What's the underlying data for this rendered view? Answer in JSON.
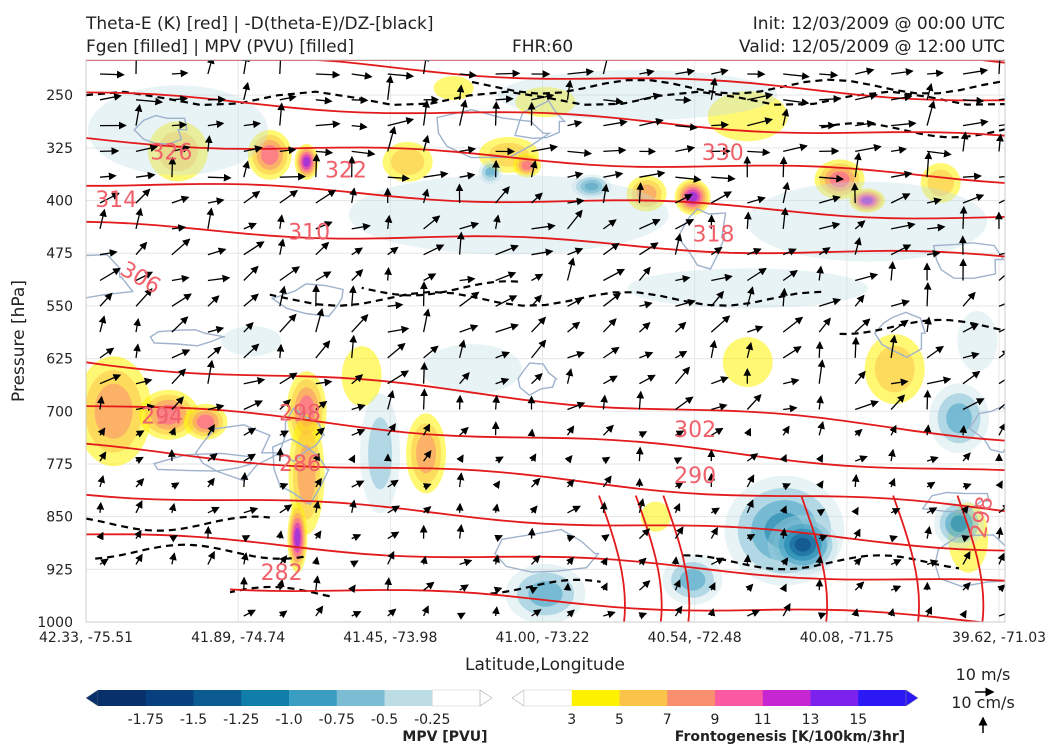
{
  "header": {
    "title_line1": "Theta-E (K) [red] | -D(theta-E)/DZ-[black]",
    "title_line2": "Fgen [filled] | MPV (PVU) [filled]",
    "fhr": "FHR:60",
    "init": "Init: 12/03/2009 @ 00:00 UTC",
    "valid": "Valid: 12/05/2009 @ 12:00 UTC"
  },
  "chart_data": {
    "type": "cross-section",
    "xlabel": "Latitude,Longitude",
    "ylabel": "Pressure [hPa]",
    "x_ticks": [
      "42.33, -75.51",
      "41.89, -74.74",
      "41.45, -73.98",
      "41.00, -73.22",
      "40.54, -72.48",
      "40.08, -71.75",
      "39.62, -71.03"
    ],
    "y_ticks": [
      250,
      325,
      400,
      475,
      550,
      625,
      700,
      775,
      850,
      925,
      1000
    ],
    "ylim": [
      1000,
      200
    ],
    "grid": true,
    "theta_e": {
      "color": "#e31a1c",
      "levels": [
        282,
        286,
        290,
        294,
        298,
        302,
        306,
        310,
        314,
        318,
        322,
        326,
        330
      ],
      "contour_labels": [
        {
          "value": "326",
          "p": 330,
          "x": 0.07
        },
        {
          "value": "322",
          "p": 356,
          "x": 0.26
        },
        {
          "value": "330",
          "p": 331,
          "x": 0.67
        },
        {
          "value": "314",
          "p": 398,
          "x": 0.01
        },
        {
          "value": "310",
          "p": 444,
          "x": 0.22
        },
        {
          "value": "318",
          "p": 447,
          "x": 0.66
        },
        {
          "value": "306",
          "p": 494,
          "x": 0.04
        },
        {
          "value": "294",
          "p": 706,
          "x": 0.06
        },
        {
          "value": "298",
          "p": 702,
          "x": 0.21
        },
        {
          "value": "302",
          "p": 725,
          "x": 0.64
        },
        {
          "value": "286",
          "p": 774,
          "x": 0.21
        },
        {
          "value": "290",
          "p": 791,
          "x": 0.64
        },
        {
          "value": "282",
          "p": 929,
          "x": 0.19
        },
        {
          "value": "298",
          "p": 880,
          "x": 0.97
        }
      ]
    },
    "dthetae_dz": {
      "color": "#000000",
      "style": "dashed"
    },
    "mpv_colorbar": {
      "label": "MPV [PVU]",
      "ticks": [
        "-1.75",
        "-1.5",
        "-1.25",
        "-1.0",
        "-0.75",
        "-0.5",
        "-0.25"
      ],
      "colors": [
        "#08306b",
        "#08407f",
        "#0b5a92",
        "#0f7ea8",
        "#3a9ec2",
        "#7bbdd3",
        "#bcdde4",
        "#ffffff"
      ]
    },
    "fgen_colorbar": {
      "label": "Frontogenesis [K/100km/3hr]",
      "ticks": [
        "3",
        "5",
        "7",
        "9",
        "11",
        "13",
        "15"
      ],
      "colors": [
        "#ffffff",
        "#fff200",
        "#fcc34a",
        "#fa8f6f",
        "#fb5aa3",
        "#c626d2",
        "#7b22ef",
        "#2b18f5"
      ]
    },
    "wind_key": {
      "horizontal": "10 m/s",
      "vertical": "10 cm/s"
    }
  }
}
